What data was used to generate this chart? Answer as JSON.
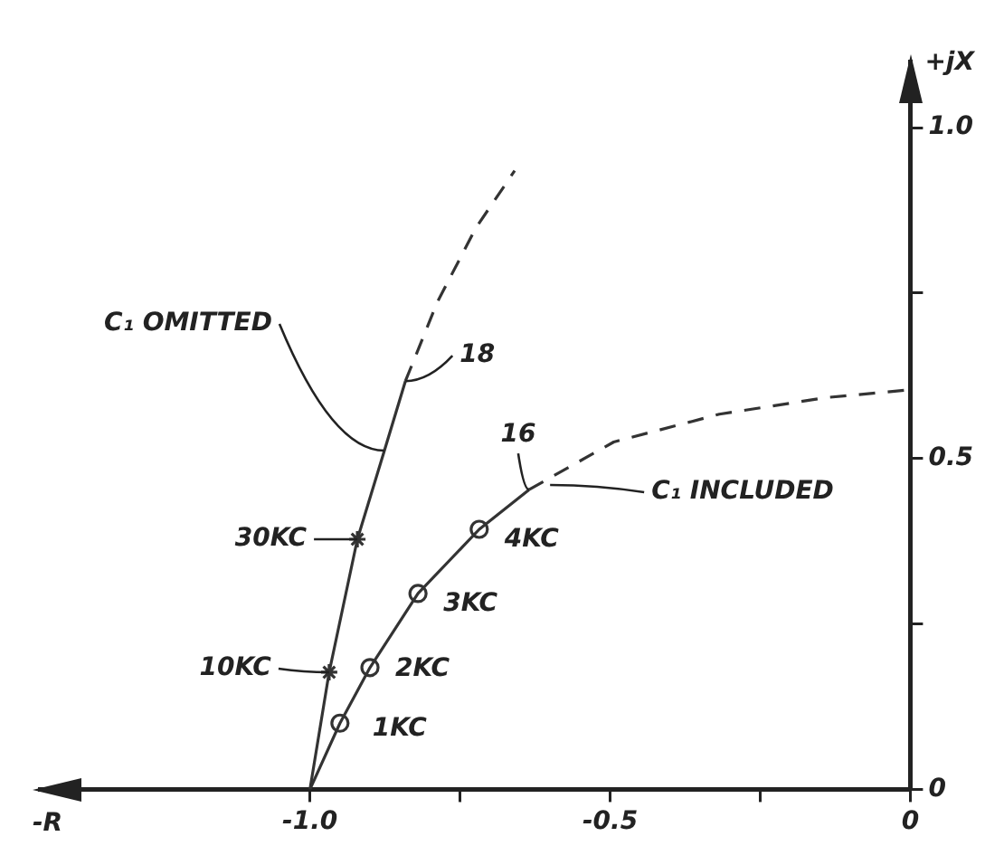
{
  "chart_data": {
    "type": "line",
    "xlabel": "-R",
    "ylabel": "+jX",
    "xlim": [
      -1.45,
      0
    ],
    "ylim": [
      0,
      1.1
    ],
    "grid": false,
    "xticks": [
      {
        "value": -1,
        "label": "-1.0"
      },
      {
        "value": -0.75,
        "label": null
      },
      -0.5,
      {
        "value": -0.25,
        "label": null
      },
      0
    ],
    "yticks": [
      0,
      {
        "value": 0.25,
        "label": null
      },
      0.5,
      {
        "value": 0.75,
        "label": null
      },
      {
        "value": 1,
        "label": "1.0"
      }
    ],
    "series": [
      {
        "line_style": "solid",
        "color": "#333333",
        "x": [
          -1.0,
          -0.968,
          -0.921,
          -0.876,
          -0.841
        ],
        "values": [
          0,
          0.177,
          0.378,
          0.512,
          0.617
        ]
      },
      {
        "line_style": "dashed",
        "color": "#333333",
        "x": [
          -0.841,
          -0.788,
          -0.724,
          -0.659
        ],
        "values": [
          0.617,
          0.736,
          0.848,
          0.935
        ]
      },
      {
        "line_style": "solid",
        "color": "#333333",
        "x": [
          -1.0,
          -0.95,
          -0.9,
          -0.82,
          -0.718,
          -0.635
        ],
        "values": [
          0,
          0.1,
          0.184,
          0.296,
          0.393,
          0.453
        ]
      },
      {
        "line_style": "dashed",
        "color": "#333333",
        "x": [
          -0.635,
          -0.494,
          -0.318,
          -0.141,
          0
        ],
        "values": [
          0.453,
          0.525,
          0.567,
          0.592,
          0.604
        ]
      },
      {
        "type": "scatter",
        "marker": "cross",
        "color": "#333333",
        "x": [
          -0.968,
          -0.921
        ],
        "values": [
          0.177,
          0.378
        ]
      },
      {
        "type": "scatter",
        "marker": "circle",
        "color": "#333333",
        "x": [
          -0.95,
          -0.9,
          -0.82,
          -0.718
        ],
        "values": [
          0.1,
          0.184,
          0.296,
          0.393
        ]
      }
    ],
    "annotations": [
      {
        "text": "C₁ OMITTED",
        "x": -0.876,
        "y": 0.512
      },
      {
        "text": "18",
        "x": -0.841,
        "y": 0.617
      },
      {
        "text": "16",
        "x": -0.635,
        "y": 0.453
      },
      {
        "text": "C₁ INCLUDED",
        "x": -0.6,
        "y": 0.46
      },
      {
        "text": "30KC",
        "x": -0.921,
        "y": 0.378
      },
      {
        "text": "10KC",
        "x": -0.968,
        "y": 0.177
      },
      {
        "text": "1KC",
        "x": -0.95,
        "y": 0.1
      },
      {
        "text": "2KC",
        "x": -0.9,
        "y": 0.184
      },
      {
        "text": "3KC",
        "x": -0.82,
        "y": 0.296
      },
      {
        "text": "4KC",
        "x": -0.718,
        "y": 0.393
      }
    ]
  }
}
